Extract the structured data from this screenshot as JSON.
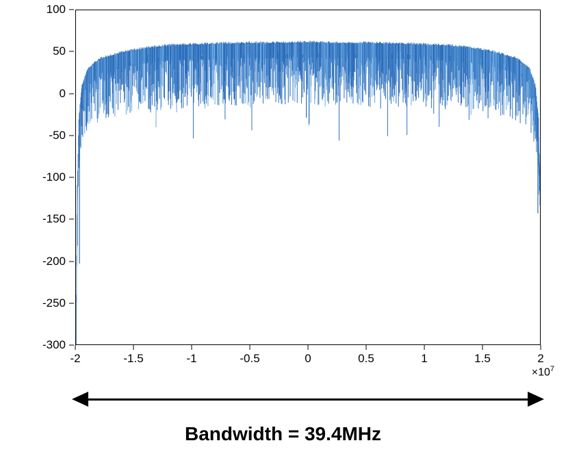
{
  "chart": {
    "type": "line",
    "series_color": "#2f6fbb",
    "series_color_light": "#6aa7e0",
    "background_color": "#ffffff",
    "border_color": "#000000",
    "line_width": 1,
    "x": {
      "lim": [
        -2,
        2
      ],
      "ticks": [
        -2,
        -1.5,
        -1,
        -0.5,
        0,
        0.5,
        1,
        1.5,
        2
      ],
      "tick_labels": [
        "-2",
        "-1.5",
        "-1",
        "-0.5",
        "0",
        "0.5",
        "1",
        "1.5",
        "2"
      ],
      "exponent_label": "×10",
      "exponent_sup": "7",
      "label_fontsize": 17
    },
    "y": {
      "lim": [
        -300,
        100
      ],
      "ticks": [
        -300,
        -250,
        -200,
        -150,
        -100,
        -50,
        0,
        50,
        100
      ],
      "tick_labels": [
        "-300",
        "-250",
        "-200",
        "-150",
        "-100",
        "-50",
        "0",
        "50",
        "100"
      ],
      "label_fontsize": 17
    },
    "envelope": {
      "comment": "upper envelope of the noisy spectrum, points as [x_in_1e7, y_dB]",
      "points": [
        [
          -2.0,
          -265
        ],
        [
          -1.99,
          -120
        ],
        [
          -1.975,
          -30
        ],
        [
          -1.95,
          10
        ],
        [
          -1.9,
          30
        ],
        [
          -1.8,
          42
        ],
        [
          -1.6,
          50
        ],
        [
          -1.4,
          55
        ],
        [
          -1.2,
          58
        ],
        [
          -1.0,
          59
        ],
        [
          -0.8,
          60
        ],
        [
          -0.5,
          61
        ],
        [
          -0.2,
          61
        ],
        [
          0.0,
          62
        ],
        [
          0.2,
          61
        ],
        [
          0.5,
          61
        ],
        [
          0.8,
          60
        ],
        [
          1.0,
          59
        ],
        [
          1.2,
          58
        ],
        [
          1.4,
          55
        ],
        [
          1.6,
          50
        ],
        [
          1.8,
          42
        ],
        [
          1.9,
          30
        ],
        [
          1.95,
          10
        ],
        [
          1.975,
          -30
        ],
        [
          1.99,
          -120
        ],
        [
          2.0,
          -130
        ]
      ]
    },
    "noise": {
      "n_lines": 1200,
      "min_drop": 10,
      "max_drop": 75,
      "extra_dips": [
        {
          "x": -0.02,
          "depth": 90
        },
        {
          "x": -1.97,
          "depth": 180
        },
        {
          "x": 1.97,
          "depth": 120
        }
      ]
    }
  },
  "arrow": {
    "color": "#000000",
    "line_width": 3,
    "head_length": 24,
    "head_width": 22
  },
  "caption": {
    "text": "Bandwidth = 39.4MHz",
    "fontsize": 28,
    "fontweight": 900,
    "color": "#000000"
  }
}
